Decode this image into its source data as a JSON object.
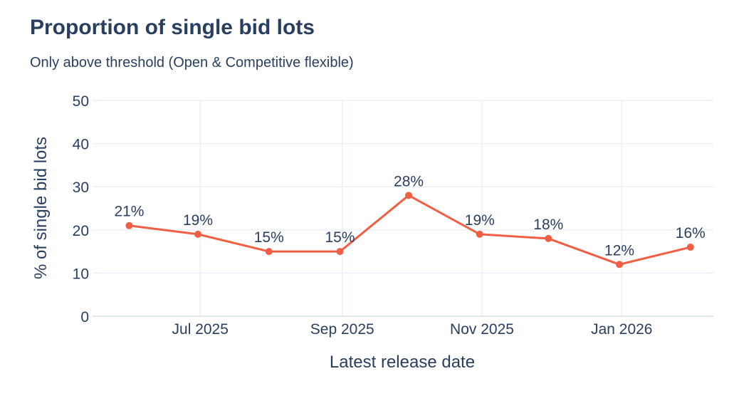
{
  "chart_data": {
    "type": "line",
    "title": "Proportion of single bid lots",
    "subtitle": "Only above threshold (Open & Competitive flexible)",
    "xlabel": "Latest release date",
    "ylabel": "% of single bid lots",
    "ylim": [
      0,
      50
    ],
    "yticks": [
      0,
      10,
      20,
      30,
      40,
      50
    ],
    "xticks": [
      "Jul 2025",
      "Sep 2025",
      "Nov 2025",
      "Jan 2026"
    ],
    "series": [
      {
        "name": "Single bid lots",
        "color": "#f05f43",
        "points": [
          {
            "x": "2025-05-31",
            "y": 21,
            "label": "21%"
          },
          {
            "x": "2025-06-30",
            "y": 19,
            "label": "19%"
          },
          {
            "x": "2025-07-31",
            "y": 15,
            "label": "15%"
          },
          {
            "x": "2025-08-31",
            "y": 15,
            "label": "15%"
          },
          {
            "x": "2025-09-30",
            "y": 28,
            "label": "28%"
          },
          {
            "x": "2025-10-31",
            "y": 19,
            "label": "19%"
          },
          {
            "x": "2025-11-30",
            "y": 18,
            "label": "18%"
          },
          {
            "x": "2025-12-31",
            "y": 12,
            "label": "12%"
          },
          {
            "x": "2026-01-31",
            "y": 16,
            "label": "16%"
          }
        ]
      }
    ],
    "grid": true
  }
}
